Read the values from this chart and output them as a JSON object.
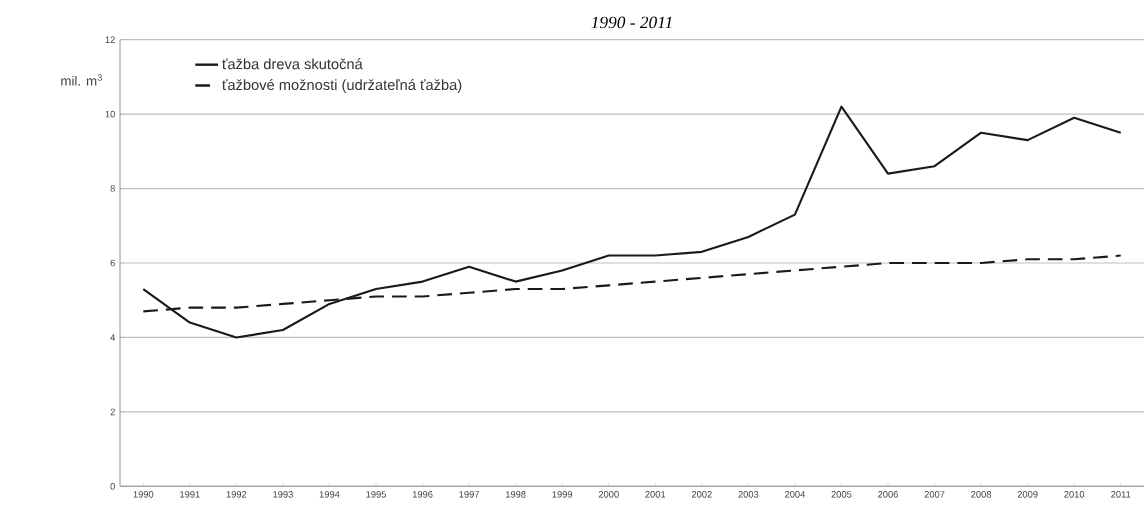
{
  "chart_data": {
    "type": "line",
    "title": "1990 - 2011",
    "ylabel": "mil. m$^{3}$",
    "categories": [
      "1990",
      "1991",
      "1992",
      "1993",
      "1994",
      "1995",
      "1996",
      "1997",
      "1998",
      "1999",
      "2000",
      "2001",
      "2002",
      "2003",
      "2004",
      "2005",
      "2006",
      "2007",
      "2008",
      "2009",
      "2010",
      "2011"
    ],
    "series": [
      {
        "name": "ťažba dreva skutočná",
        "color": "#1a1a1a",
        "line_style": "solid",
        "values": [
          5.3,
          4.4,
          4.0,
          4.2,
          4.9,
          5.3,
          5.5,
          5.9,
          5.5,
          5.8,
          6.2,
          6.2,
          6.3,
          6.7,
          7.3,
          10.2,
          8.4,
          8.6,
          9.5,
          9.3,
          9.9,
          9.5
        ]
      },
      {
        "name": "ťažbové možnosti (udržateľná ťažba)",
        "color": "#1a1a1a",
        "line_style": "dashed",
        "values": [
          4.7,
          4.8,
          4.8,
          4.9,
          5.0,
          5.1,
          5.1,
          5.2,
          5.3,
          5.3,
          5.4,
          5.5,
          5.6,
          5.7,
          5.8,
          5.9,
          6.0,
          6.0,
          6.0,
          6.1,
          6.1,
          6.2
        ]
      }
    ],
    "ylim": [
      0,
      12
    ],
    "yticks": [
      0,
      2,
      4,
      6,
      8,
      10,
      12
    ],
    "grid": "y",
    "legend": "top left",
    "marker": "none"
  }
}
